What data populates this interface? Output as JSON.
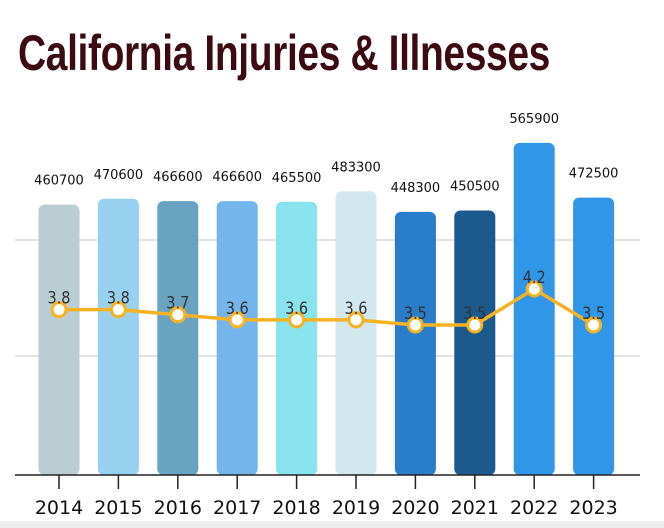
{
  "chart_data": {
    "type": "bar",
    "title": "California Injuries & Illnesses",
    "categories": [
      "2014",
      "2015",
      "2016",
      "2017",
      "2018",
      "2019",
      "2020",
      "2021",
      "2022",
      "2023"
    ],
    "series": [
      {
        "type": "bar",
        "values": [
          460700,
          470600,
          466600,
          466600,
          465500,
          483300,
          448300,
          450500,
          565900,
          472500
        ],
        "colors": [
          "#b9cdd3",
          "#98d1ef",
          "#68a3c1",
          "#74b6ec",
          "#88e3ec",
          "#d3e7ef",
          "#2a7dca",
          "#1c5a8e",
          "#2f96e8",
          "#2f96e8"
        ]
      },
      {
        "type": "line",
        "values": [
          3.8,
          3.8,
          3.7,
          3.6,
          3.6,
          3.6,
          3.5,
          3.5,
          4.2,
          3.5
        ],
        "color": "#f5b324"
      }
    ],
    "grid": true,
    "legend": "none"
  }
}
